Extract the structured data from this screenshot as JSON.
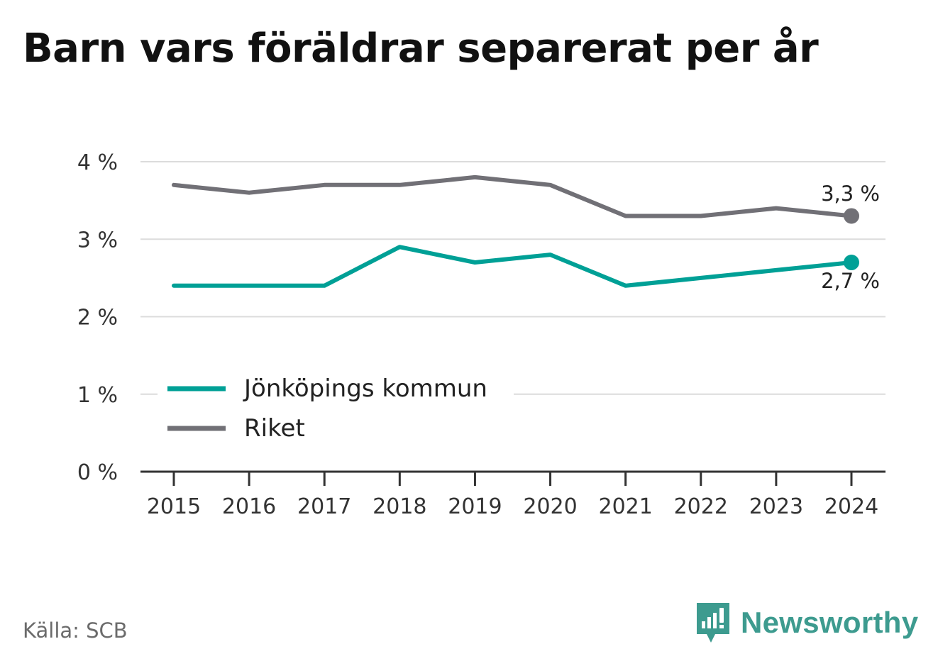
{
  "title": "Barn vars föräldrar separerat per år",
  "source": "Källa: SCB",
  "brand": {
    "name": "Newsworthy",
    "icon": "newsworthy-logo-icon",
    "color": "#3d9b8f"
  },
  "chart_data": {
    "type": "line",
    "title": "Barn vars föräldrar separerat per år",
    "xlabel": "",
    "ylabel": "",
    "x": [
      "2015",
      "2016",
      "2017",
      "2018",
      "2019",
      "2020",
      "2021",
      "2022",
      "2023",
      "2024"
    ],
    "ylim": [
      0,
      4
    ],
    "yticks": [
      0,
      1,
      2,
      3,
      4
    ],
    "ytick_labels": [
      "0 %",
      "1 %",
      "2 %",
      "3 %",
      "4 %"
    ],
    "grid": true,
    "legend_placement": "lower-left",
    "series": [
      {
        "name": "Jönköpings kommun",
        "color": "#00a096",
        "values": [
          2.4,
          2.4,
          2.4,
          2.9,
          2.7,
          2.8,
          2.4,
          2.5,
          2.6,
          2.7
        ],
        "end_label": "2,7 %"
      },
      {
        "name": "Riket",
        "color": "#717076",
        "values": [
          3.7,
          3.6,
          3.7,
          3.7,
          3.8,
          3.7,
          3.3,
          3.3,
          3.4,
          3.3
        ],
        "end_label": "3,3 %"
      }
    ]
  }
}
